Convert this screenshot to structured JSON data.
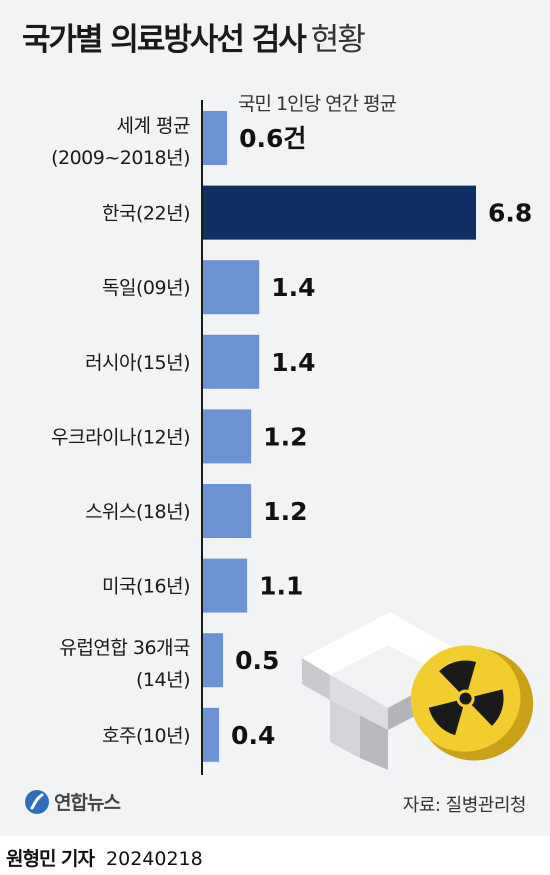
{
  "title": "국가별 의료방사선 검사",
  "title_suffix": "현황",
  "subtitle": "국민 1인당 연간 평균",
  "brand": "연합뉴스",
  "source": "자료: 질병관리청",
  "author": "원형민 기자",
  "date": "20240218",
  "colors": {
    "bar": "#6b93d4",
    "highlight": "#0e2f64",
    "background": "#f2f3f5",
    "axis": "#1a1a1a"
  },
  "chart_data": {
    "type": "bar",
    "orientation": "horizontal",
    "title": "국가별 의료방사선 검사 현황",
    "xlabel": "",
    "ylabel": "",
    "grid": false,
    "categories": [
      {
        "label": "세계 평균",
        "sublabel": "(2009~2018년)"
      },
      {
        "label": "한국(22년)"
      },
      {
        "label": "독일(09년)"
      },
      {
        "label": "러시아(15년)"
      },
      {
        "label": "우크라이나(12년)"
      },
      {
        "label": "스위스(18년)"
      },
      {
        "label": "미국(16년)"
      },
      {
        "label": "유럽연합 36개국",
        "sublabel": "(14년)"
      },
      {
        "label": "호주(10년)"
      }
    ],
    "values": [
      0.6,
      6.8,
      1.4,
      1.4,
      1.2,
      1.2,
      1.1,
      0.5,
      0.4
    ],
    "value_labels": [
      "0.6건",
      "6.8",
      "1.4",
      "1.4",
      "1.2",
      "1.2",
      "1.1",
      "0.5",
      "0.4"
    ],
    "highlight_index": 1,
    "xlim": [
      0,
      6.8
    ]
  }
}
